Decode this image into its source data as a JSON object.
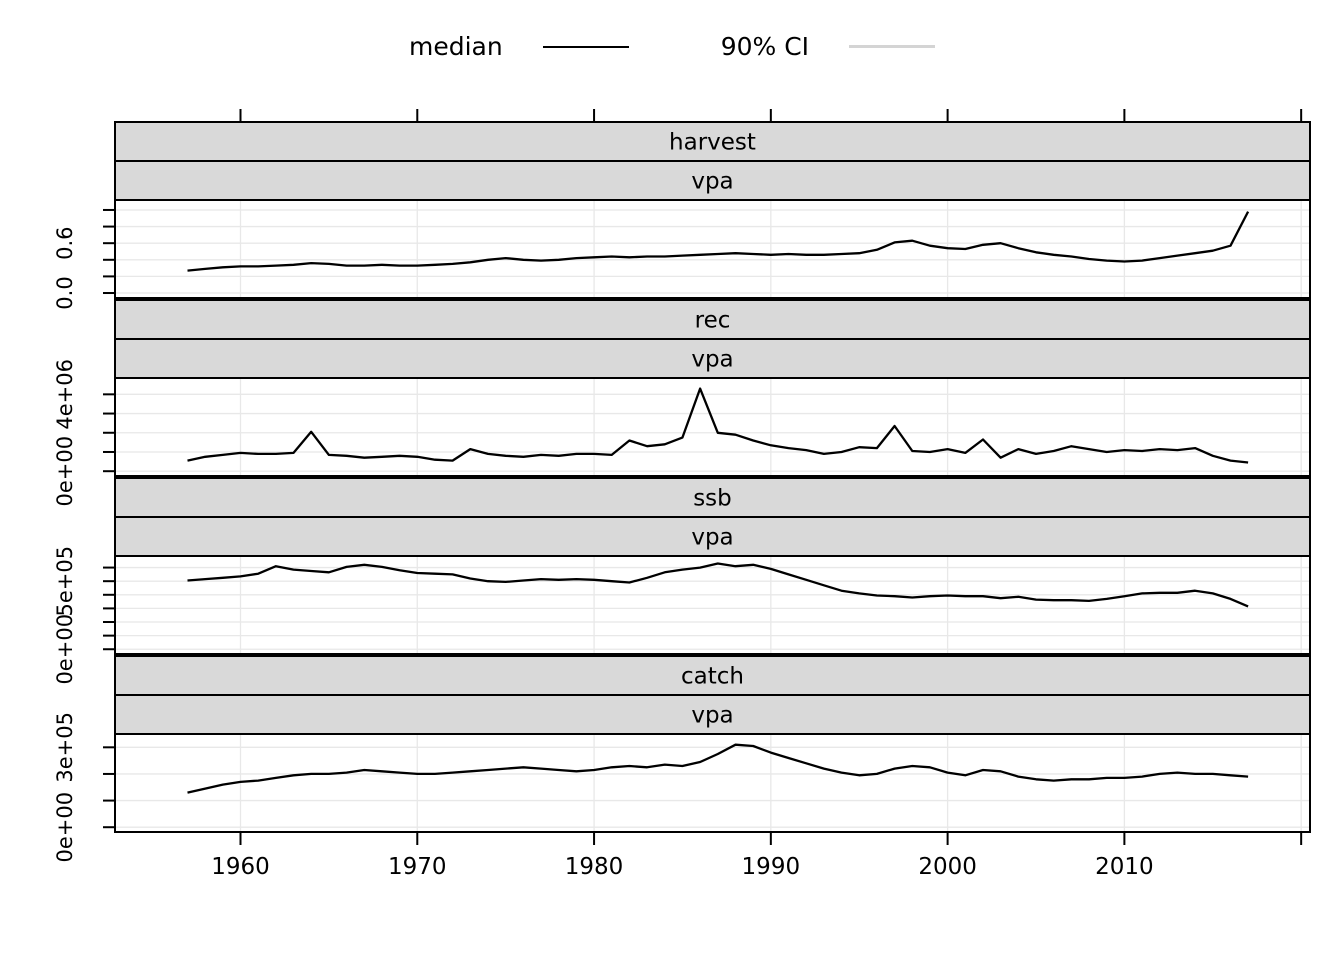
{
  "legend": {
    "items": [
      {
        "label": "median",
        "color": "#000000"
      },
      {
        "label": "90% CI",
        "color": "#d4d4d4"
      }
    ]
  },
  "colors": {
    "median_line": "#000000",
    "ci_line": "#d4d4d4",
    "strip_bg": "#d9d9d9",
    "grid": "#e8e8e8",
    "border": "#000000",
    "text": "#000000"
  },
  "chart_data": {
    "type": "line",
    "title": "",
    "xlabel": "",
    "ylabel": "",
    "legend_position": "top",
    "grid": true,
    "x_axis": {
      "tick_years": [
        1960,
        1970,
        1980,
        1990,
        2000,
        2010,
        2020
      ],
      "labeled_years": [
        1960,
        1970,
        1980,
        1990,
        2000,
        2010
      ],
      "domain": [
        1952.9,
        2020.5
      ]
    },
    "years": [
      1957,
      1958,
      1959,
      1960,
      1961,
      1962,
      1963,
      1964,
      1965,
      1966,
      1967,
      1968,
      1969,
      1970,
      1971,
      1972,
      1973,
      1974,
      1975,
      1976,
      1977,
      1978,
      1979,
      1980,
      1981,
      1982,
      1983,
      1984,
      1985,
      1986,
      1987,
      1988,
      1989,
      1990,
      1991,
      1992,
      1993,
      1994,
      1995,
      1996,
      1997,
      1998,
      1999,
      2000,
      2001,
      2002,
      2003,
      2004,
      2005,
      2006,
      2007,
      2008,
      2009,
      2010,
      2011,
      2012,
      2013,
      2014,
      2015,
      2016,
      2017
    ],
    "panels": [
      {
        "strip": "harvest",
        "strip_inner": "vpa",
        "series_name": "median",
        "ylim": [
          -0.06,
          1.12
        ],
        "yticks": [
          0,
          0.2,
          0.4,
          0.6,
          0.8,
          1.0
        ],
        "ytick_labels": [
          {
            "value": 0,
            "label": "0.0"
          },
          {
            "value": 0.6,
            "label": "0.6"
          }
        ],
        "values": [
          0.27,
          0.29,
          0.31,
          0.32,
          0.32,
          0.33,
          0.34,
          0.36,
          0.35,
          0.33,
          0.33,
          0.34,
          0.33,
          0.33,
          0.34,
          0.35,
          0.37,
          0.4,
          0.42,
          0.4,
          0.39,
          0.4,
          0.42,
          0.43,
          0.44,
          0.43,
          0.44,
          0.44,
          0.45,
          0.46,
          0.47,
          0.48,
          0.47,
          0.46,
          0.47,
          0.46,
          0.46,
          0.47,
          0.48,
          0.52,
          0.61,
          0.63,
          0.57,
          0.54,
          0.53,
          0.58,
          0.6,
          0.54,
          0.49,
          0.46,
          0.44,
          0.41,
          0.39,
          0.38,
          0.39,
          0.42,
          0.45,
          0.48,
          0.51,
          0.57,
          0.98
        ]
      },
      {
        "strip": "rec",
        "strip_inner": "vpa",
        "series_name": "median",
        "ylim": [
          -250000,
          4850000
        ],
        "yticks": [
          0,
          1000000,
          2000000,
          3000000,
          4000000
        ],
        "ytick_labels": [
          {
            "value": 0,
            "label": "0e+00"
          },
          {
            "value": 4000000,
            "label": "4e+06"
          }
        ],
        "values": [
          550000,
          750000,
          850000,
          950000,
          900000,
          900000,
          950000,
          2050000,
          850000,
          800000,
          700000,
          750000,
          800000,
          750000,
          600000,
          550000,
          1150000,
          900000,
          800000,
          750000,
          850000,
          800000,
          900000,
          900000,
          850000,
          1600000,
          1300000,
          1400000,
          1750000,
          4300000,
          2000000,
          1900000,
          1600000,
          1350000,
          1200000,
          1100000,
          900000,
          1000000,
          1250000,
          1200000,
          2350000,
          1050000,
          1000000,
          1150000,
          950000,
          1650000,
          700000,
          1150000,
          900000,
          1050000,
          1300000,
          1150000,
          1000000,
          1100000,
          1050000,
          1150000,
          1100000,
          1200000,
          800000,
          550000,
          450000
        ]
      },
      {
        "strip": "ssb",
        "strip_inner": "vpa",
        "series_name": "median",
        "ylim": [
          -35000,
          685000
        ],
        "yticks": [
          0,
          100000,
          200000,
          300000,
          400000,
          500000,
          600000
        ],
        "ytick_labels": [
          {
            "value": 0,
            "label": "0e+00"
          },
          {
            "value": 500000,
            "label": "5e+05"
          }
        ],
        "values": [
          505000,
          515000,
          525000,
          535000,
          555000,
          610000,
          585000,
          575000,
          565000,
          605000,
          620000,
          605000,
          580000,
          560000,
          555000,
          550000,
          520000,
          500000,
          495000,
          505000,
          515000,
          510000,
          515000,
          510000,
          500000,
          490000,
          525000,
          565000,
          585000,
          600000,
          630000,
          610000,
          620000,
          590000,
          550000,
          510000,
          470000,
          430000,
          410000,
          395000,
          390000,
          380000,
          390000,
          395000,
          390000,
          390000,
          375000,
          385000,
          365000,
          360000,
          360000,
          355000,
          370000,
          390000,
          410000,
          415000,
          415000,
          430000,
          410000,
          370000,
          315000
        ]
      },
      {
        "strip": "catch",
        "strip_inner": "vpa",
        "series_name": "median",
        "ylim": [
          -18000,
          350000
        ],
        "yticks": [
          0,
          100000,
          200000,
          300000
        ],
        "ytick_labels": [
          {
            "value": 0,
            "label": "0e+00"
          },
          {
            "value": 300000,
            "label": "3e+05"
          }
        ],
        "values": [
          130000,
          145000,
          160000,
          170000,
          175000,
          185000,
          195000,
          200000,
          200000,
          205000,
          215000,
          210000,
          205000,
          200000,
          200000,
          205000,
          210000,
          215000,
          220000,
          225000,
          220000,
          215000,
          210000,
          215000,
          225000,
          230000,
          225000,
          235000,
          230000,
          245000,
          275000,
          310000,
          305000,
          280000,
          260000,
          240000,
          220000,
          205000,
          195000,
          200000,
          220000,
          230000,
          225000,
          205000,
          195000,
          215000,
          210000,
          190000,
          180000,
          175000,
          180000,
          180000,
          185000,
          185000,
          190000,
          200000,
          205000,
          200000,
          200000,
          195000,
          190000
        ]
      }
    ]
  }
}
